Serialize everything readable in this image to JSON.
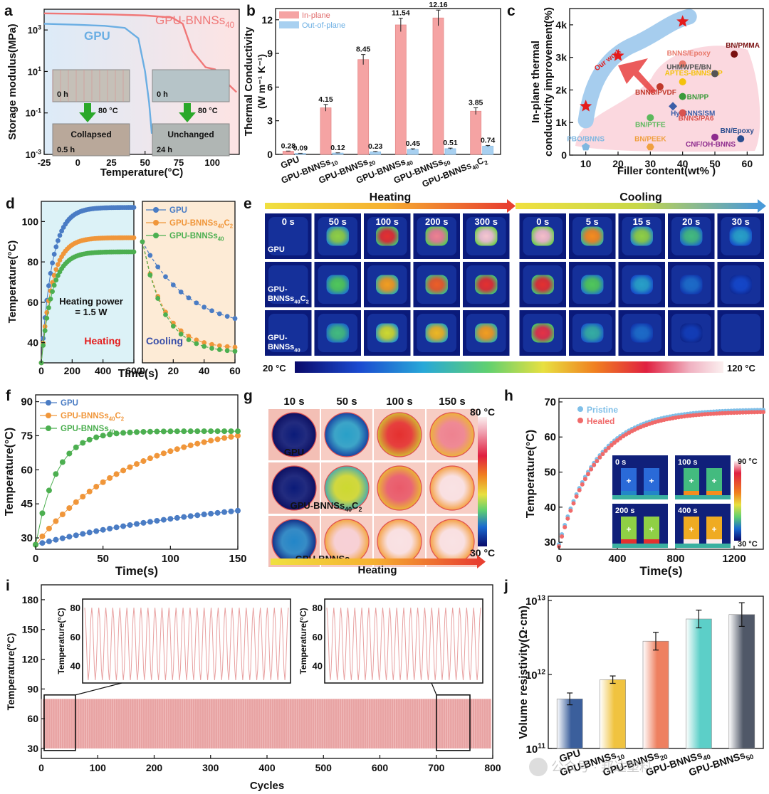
{
  "figure": {
    "watermark": "公众号 · 邦达塑料",
    "panel_letters": [
      "a",
      "b",
      "c",
      "d",
      "e",
      "f",
      "g",
      "h",
      "i",
      "j"
    ]
  },
  "chart_data": [
    {
      "panel": "a",
      "type": "line",
      "xlabel": "Temperature(°C)",
      "ylabel": "Storage modulus(MPa)",
      "xlim": [
        -25,
        120
      ],
      "xticks": [
        -25,
        0,
        25,
        50,
        75,
        100
      ],
      "yscale": "log",
      "ylim_exp": [
        -3,
        4
      ],
      "ytick_labels": [
        {
          "base": "10",
          "exp": "-3"
        },
        {
          "base": "10",
          "exp": "-1"
        },
        {
          "base": "10",
          "exp": "1"
        },
        {
          "base": "10",
          "exp": "3"
        }
      ],
      "series": [
        {
          "name": "GPU",
          "color": "#6aaee3",
          "x": [
            -25,
            0,
            20,
            35,
            45,
            50,
            53,
            55
          ],
          "log10y": [
            3.3,
            3.25,
            3.2,
            3.1,
            2.6,
            1.0,
            -0.5,
            -2
          ]
        },
        {
          "name": "GPU-BNNSs40",
          "color": "#f07777",
          "x": [
            -25,
            0,
            25,
            50,
            70,
            78,
            85,
            95,
            102,
            110,
            118
          ],
          "log10y": [
            3.8,
            3.78,
            3.75,
            3.7,
            3.6,
            3.3,
            2.0,
            1.2,
            1.1,
            0.5,
            0.0
          ]
        }
      ],
      "labels": {
        "gpu": "GPU",
        "bnns_main": "GPU-BNNSs",
        "bnns_sub": "40"
      },
      "insets": [
        {
          "time_before": "0 h",
          "temp": "80 °C",
          "state": "Collapsed",
          "time_after": "0.5 h"
        },
        {
          "time_before": "0 h",
          "temp": "80 °C",
          "state": "Unchanged",
          "time_after": "24 h"
        }
      ]
    },
    {
      "panel": "b",
      "type": "bar",
      "ylabel_1": "Thermal Conductivity",
      "ylabel_2": "(W m⁻¹ K⁻¹)",
      "ylim": [
        0,
        13
      ],
      "yticks": [
        0,
        3,
        6,
        9,
        12
      ],
      "categories": [
        {
          "main": "GPU",
          "sub": ""
        },
        {
          "main": "GPU-BNNSs",
          "sub": "10"
        },
        {
          "main": "GPU-BNNSs",
          "sub": "20"
        },
        {
          "main": "GPU-BNNSs",
          "sub": "40"
        },
        {
          "main": "GPU-BNNSs",
          "sub": "50"
        },
        {
          "main": "GPU-BNNSs",
          "sub": "40",
          "tail": "C",
          "tail_sub": "2"
        }
      ],
      "series": [
        {
          "name": "In-plane",
          "color": "#f5a3a3",
          "values": [
            0.28,
            4.15,
            8.45,
            11.54,
            12.16,
            3.85
          ],
          "errors": [
            0.02,
            0.3,
            0.45,
            0.6,
            0.7,
            0.3
          ]
        },
        {
          "name": "Out-of-plane",
          "color": "#a8d0f0",
          "values": [
            0.09,
            0.12,
            0.23,
            0.45,
            0.51,
            0.74
          ],
          "errors": [
            0.01,
            0.02,
            0.03,
            0.05,
            0.05,
            0.06
          ]
        }
      ]
    },
    {
      "panel": "c",
      "type": "scatter",
      "xlabel": "Filler content(wt% )",
      "ylabel_1": "In-plane thermal",
      "ylabel_2": "conductivity improvement(%)",
      "xlim": [
        5,
        65
      ],
      "xticks": [
        10,
        20,
        30,
        40,
        50,
        60
      ],
      "ylim": [
        0,
        4500
      ],
      "yticks": [
        0,
        1000,
        2000,
        3000,
        4000
      ],
      "ytick_labels": [
        "0",
        "1k",
        "2k",
        "3k",
        "4k"
      ],
      "our_work_label": "Our work",
      "our_work": [
        {
          "x": 10,
          "y": 1500
        },
        {
          "x": 20,
          "y": 3050
        },
        {
          "x": 40,
          "y": 4100
        }
      ],
      "points": [
        {
          "label": "PBO/BNNS",
          "x": 10,
          "y": 250,
          "color": "#7fb7e0",
          "shape": "pentagon"
        },
        {
          "label": "BN/PEEK",
          "x": 30,
          "y": 250,
          "color": "#f0a040",
          "shape": "hexagon"
        },
        {
          "label": "BN/PTFE",
          "x": 30,
          "y": 1150,
          "color": "#5cb85c",
          "shape": "circle"
        },
        {
          "label": "BNNS/PVDF",
          "x": 33,
          "y": 2100,
          "color": "#c0392b",
          "shape": "circle"
        },
        {
          "label": "BNNS/Epoxy",
          "x": 40,
          "y": 2800,
          "color": "#e8786a",
          "shape": "circle"
        },
        {
          "label": "APTES-BNNS/EP",
          "x": 40,
          "y": 2250,
          "color": "#f4c20d",
          "shape": "circle"
        },
        {
          "label": "BN/PP",
          "x": 40,
          "y": 1800,
          "color": "#3a9a3a",
          "shape": "circle"
        },
        {
          "label": "Hy-BNNS/SM",
          "x": 37,
          "y": 1500,
          "color": "#3b5ea8",
          "shape": "diamond"
        },
        {
          "label": "BNNS/PA6",
          "x": 40,
          "y": 1300,
          "color": "#d9534f",
          "shape": "circle"
        },
        {
          "label": "UHMWPE/BN",
          "x": 50,
          "y": 2500,
          "color": "#555555",
          "shape": "circle"
        },
        {
          "label": "BN/PMMA",
          "x": 56,
          "y": 3100,
          "color": "#7a1010",
          "shape": "circle"
        },
        {
          "label": "BN/Epoxy",
          "x": 58,
          "y": 500,
          "color": "#2a4d8f",
          "shape": "circle"
        },
        {
          "label": "CNF/OH-BNNS",
          "x": 50,
          "y": 550,
          "color": "#8e2c8e",
          "shape": "circle"
        }
      ]
    },
    {
      "panel": "d",
      "type": "line",
      "ylabel": "Temperature(°C)",
      "xlabel": "Time(s)",
      "heating": {
        "label": "Heating",
        "xlim": [
          0,
          600
        ],
        "xticks": [
          0,
          200,
          400,
          600
        ],
        "annotation_1": "Heating power",
        "annotation_2": "= 1.5 W"
      },
      "cooling": {
        "label": "Cooling",
        "xlim": [
          0,
          60
        ],
        "xticks": [
          0,
          20,
          40,
          60
        ]
      },
      "ylim": [
        30,
        110
      ],
      "yticks": [
        40,
        60,
        80,
        100
      ],
      "series": [
        {
          "name": "GPU",
          "sub": "",
          "tail": "",
          "tail_sub": "",
          "color": "#4a7cc4",
          "plateau": 107,
          "cool_end": 46
        },
        {
          "name": "GPU-BNNSs",
          "sub": "40",
          "tail": "C",
          "tail_sub": "2",
          "color": "#f0963a",
          "plateau": 92,
          "cool_end": 37
        },
        {
          "name": "GPU-BNNSs",
          "sub": "40",
          "tail": "",
          "tail_sub": "",
          "color": "#4caf50",
          "plateau": 85,
          "cool_end": 35
        }
      ]
    },
    {
      "panel": "e",
      "type": "heatmap",
      "heating_label": "Heating",
      "cooling_label": "Cooling",
      "heating_times": [
        "0 s",
        "50 s",
        "100 s",
        "200 s",
        "300 s"
      ],
      "cooling_times": [
        "0 s",
        "5 s",
        "15 s",
        "20 s",
        "30 s"
      ],
      "rows": [
        {
          "main": "GPU",
          "line2": "",
          "sub": "",
          "tail": "",
          "tail_sub": "",
          "heat": [
            0.05,
            0.55,
            0.85,
            0.92,
            0.96
          ],
          "cool": [
            0.95,
            0.75,
            0.55,
            0.45,
            0.35
          ]
        },
        {
          "main": "GPU-",
          "line2": "BNNSs",
          "sub": "40",
          "tail": "C",
          "tail_sub": "2",
          "heat": [
            0.05,
            0.5,
            0.72,
            0.8,
            0.85
          ],
          "cool": [
            0.85,
            0.5,
            0.35,
            0.25,
            0.18
          ]
        },
        {
          "main": "GPU-",
          "line2": "BNNSs",
          "sub": "40",
          "tail": "",
          "tail_sub": "",
          "heat": [
            0.05,
            0.45,
            0.6,
            0.68,
            0.72
          ],
          "cool": [
            0.88,
            0.4,
            0.25,
            0.15,
            0.1
          ]
        }
      ],
      "scale_min": "20 °C",
      "scale_max": "120 °C"
    },
    {
      "panel": "f",
      "type": "line",
      "xlabel": "Time(s)",
      "ylabel": "Temperature(°C)",
      "xlim": [
        0,
        150
      ],
      "xticks": [
        0,
        50,
        100,
        150
      ],
      "ylim": [
        25,
        93
      ],
      "yticks": [
        30,
        45,
        60,
        75,
        90
      ],
      "series": [
        {
          "name": "GPU",
          "sub": "",
          "tail": "",
          "tail_sub": "",
          "color": "#4a7cc4",
          "start": 27,
          "end": 42,
          "k": 0.006
        },
        {
          "name": "GPU-BNNSs",
          "sub": "40",
          "tail": "C",
          "tail_sub": "2",
          "color": "#f0963a",
          "start": 27,
          "end": 75,
          "k": 0.014
        },
        {
          "name": "GPU-BNNSs",
          "sub": "40",
          "tail": "",
          "tail_sub": "",
          "color": "#4caf50",
          "start": 27,
          "end": 77,
          "k": 0.065
        }
      ]
    },
    {
      "panel": "g",
      "type": "heatmap",
      "times": [
        "10 s",
        "50 s",
        "100 s",
        "150 s"
      ],
      "rows": [
        {
          "main": "GPU",
          "sub": "",
          "tail": "",
          "tail_sub": "",
          "temps": [
            0.05,
            0.35,
            0.85,
            0.92
          ]
        },
        {
          "main": "GPU-BNNSs",
          "sub": "40",
          "tail": "C",
          "tail_sub": "2",
          "temps": [
            0.05,
            0.6,
            0.9,
            0.99
          ]
        },
        {
          "main": "GPU-BNNSs",
          "sub": "40",
          "tail": "",
          "tail_sub": "",
          "temps": [
            0.3,
            0.97,
            0.99,
            0.99
          ]
        }
      ],
      "scale_max": "80 °C",
      "scale_min": "30 °C",
      "arrow_label": "Heating"
    },
    {
      "panel": "h",
      "type": "scatter",
      "xlabel": "Time(s)",
      "ylabel": "Temperature(°C)",
      "xlim": [
        0,
        1400
      ],
      "xticks": [
        0,
        400,
        800,
        1200
      ],
      "ylim": [
        28,
        71
      ],
      "yticks": [
        30,
        40,
        50,
        60,
        70
      ],
      "series": [
        {
          "name": "Pristine",
          "color": "#7fbfe8"
        },
        {
          "name": "Healed",
          "color": "#f06a6a"
        }
      ],
      "inset_times": [
        "0 s",
        "100 s",
        "200 s",
        "400 s"
      ],
      "inset_scale_max": "90 °C",
      "inset_scale_min": "30 °C"
    },
    {
      "panel": "i",
      "type": "line",
      "xlabel": "Cycles",
      "ylabel": "Temperature(°C)",
      "xlim": [
        0,
        800
      ],
      "xticks": [
        0,
        100,
        200,
        300,
        400,
        500,
        600,
        700,
        800
      ],
      "ylim": [
        20,
        195
      ],
      "yticks": [
        30,
        60,
        90,
        120,
        150,
        180
      ],
      "range": [
        30,
        80
      ],
      "color": "#e8a3a3",
      "inset_ylabel": "Temperature(°C)",
      "inset_yticks": [
        40,
        60,
        80
      ]
    },
    {
      "panel": "j",
      "type": "bar",
      "ylabel": "Volume resistivity(Ω·cm)",
      "yscale": "log",
      "ylim_exp": [
        11,
        13
      ],
      "ytick_labels": [
        {
          "base": "10",
          "exp": "11"
        },
        {
          "base": "10",
          "exp": "12"
        },
        {
          "base": "10",
          "exp": "13"
        }
      ],
      "categories": [
        {
          "main": "GPU",
          "sub": ""
        },
        {
          "main": "GPU-BNNSs",
          "sub": "10"
        },
        {
          "main": "GPU-BNNSs",
          "sub": "20"
        },
        {
          "main": "GPU-BNNSs",
          "sub": "40"
        },
        {
          "main": "GPU-BNNSs",
          "sub": "50"
        }
      ],
      "log10_values": [
        11.67,
        11.93,
        12.45,
        12.75,
        12.81
      ],
      "log10_err": [
        0.08,
        0.05,
        0.12,
        0.12,
        0.16
      ],
      "colors": [
        "#3b5f9c",
        "#f0c340",
        "#ee8060",
        "#5ccfc8",
        "#505868"
      ]
    }
  ]
}
